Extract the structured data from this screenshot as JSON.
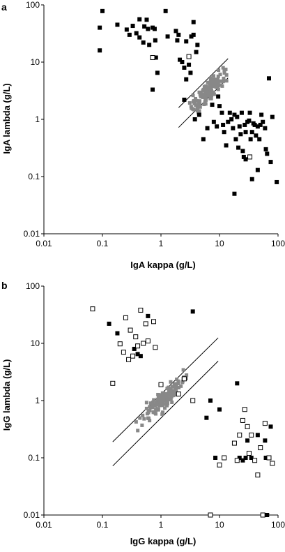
{
  "chart_data": [
    {
      "panel": "a",
      "type": "scatter",
      "xscale": "log",
      "yscale": "log",
      "xlim": [
        0.01,
        100
      ],
      "ylim": [
        0.01,
        100
      ],
      "xticks": [
        "0.01",
        "0.1",
        "1",
        "10",
        "100"
      ],
      "yticks": [
        "0.01",
        "0.1",
        "1",
        "10",
        "100"
      ],
      "xlabel": "IgA kappa (g/L)",
      "ylabel": "IgA lambda (g/L)",
      "grid": false,
      "lines": [
        {
          "x": [
            2.0,
            14.0
          ],
          "y": [
            1.6,
            11.5
          ]
        },
        {
          "x": [
            2.0,
            14.0
          ],
          "y": [
            0.72,
            5.3
          ]
        }
      ],
      "series": [
        {
          "marker": "filled-square",
          "color": "#000000",
          "points": [
            [
              0.09,
              16
            ],
            [
              0.09,
              40
            ],
            [
              0.1,
              78
            ],
            [
              0.18,
              45
            ],
            [
              0.26,
              37
            ],
            [
              0.29,
              30
            ],
            [
              0.33,
              43
            ],
            [
              0.38,
              32
            ],
            [
              0.43,
              56
            ],
            [
              0.43,
              27
            ],
            [
              0.5,
              22
            ],
            [
              0.52,
              42
            ],
            [
              0.57,
              55
            ],
            [
              0.6,
              38
            ],
            [
              0.63,
              20
            ],
            [
              0.72,
              40
            ],
            [
              0.78,
              38
            ],
            [
              0.8,
              24
            ],
            [
              0.82,
              12
            ],
            [
              0.87,
              6.5
            ],
            [
              0.72,
              3.3
            ],
            [
              1.2,
              78
            ],
            [
              1.3,
              28
            ],
            [
              1.8,
              35
            ],
            [
              2.0,
              30
            ],
            [
              1.9,
              24
            ],
            [
              2.1,
              11
            ],
            [
              2.3,
              10
            ],
            [
              2.5,
              8
            ],
            [
              2.7,
              23
            ],
            [
              3.0,
              9
            ],
            [
              3.3,
              28
            ],
            [
              3.6,
              50
            ],
            [
              3.6,
              30
            ],
            [
              4.0,
              15
            ],
            [
              4.2,
              20
            ],
            [
              3.2,
              6.5
            ],
            [
              2.7,
              5
            ],
            [
              2.5,
              2.2
            ],
            [
              4.5,
              1.2
            ],
            [
              3.8,
              1.0
            ],
            [
              5.3,
              0.45
            ],
            [
              6.2,
              0.7
            ],
            [
              7.5,
              1.8
            ],
            [
              8.0,
              0.9
            ],
            [
              9.0,
              0.75
            ],
            [
              9.5,
              2.5
            ],
            [
              10.0,
              1.7
            ],
            [
              11.0,
              1.3
            ],
            [
              12.0,
              0.6
            ],
            [
              13.0,
              0.35
            ],
            [
              11.5,
              0.8
            ],
            [
              14.0,
              0.9
            ],
            [
              15.0,
              1.3
            ],
            [
              16.0,
              1.0
            ],
            [
              17.0,
              0.7
            ],
            [
              18.0,
              1.2
            ],
            [
              19.0,
              0.45
            ],
            [
              20.0,
              1.1
            ],
            [
              21.0,
              0.32
            ],
            [
              22.0,
              0.75
            ],
            [
              23.0,
              0.55
            ],
            [
              24.0,
              1.3
            ],
            [
              25.0,
              0.28
            ],
            [
              26.0,
              0.22
            ],
            [
              27.0,
              0.8
            ],
            [
              28.0,
              0.6
            ],
            [
              30.0,
              0.9
            ],
            [
              32.0,
              0.95
            ],
            [
              33.0,
              1.3
            ],
            [
              34.0,
              0.45
            ],
            [
              36.0,
              0.6
            ],
            [
              38.0,
              0.85
            ],
            [
              40.0,
              0.8
            ],
            [
              42.0,
              0.52
            ],
            [
              45.0,
              0.75
            ],
            [
              48.0,
              0.45
            ],
            [
              50.0,
              0.8
            ],
            [
              52.0,
              1.2
            ],
            [
              55.0,
              0.9
            ],
            [
              60.0,
              0.7
            ],
            [
              62.0,
              0.3
            ],
            [
              65.0,
              0.25
            ],
            [
              70.0,
              5.2
            ],
            [
              28.0,
              0.2
            ],
            [
              36.0,
              0.09
            ],
            [
              45.0,
              0.13
            ],
            [
              18.0,
              0.05
            ],
            [
              95.0,
              0.08
            ],
            [
              75.0,
              0.18
            ],
            [
              80.0,
              1.1
            ]
          ]
        },
        {
          "marker": "open-square",
          "color": "#000000",
          "points": [
            [
              0.72,
              12
            ],
            [
              3.0,
              12.5
            ],
            [
              33.0,
              0.22
            ]
          ]
        },
        {
          "marker": "gray-square",
          "color": "#888888",
          "cluster": true
        }
      ]
    },
    {
      "panel": "b",
      "type": "scatter",
      "xscale": "log",
      "yscale": "log",
      "xlim": [
        0.01,
        100
      ],
      "ylim": [
        0.01,
        100
      ],
      "xticks": [
        "0.01",
        "0.1",
        "1",
        "10",
        "100"
      ],
      "yticks": [
        "0.01",
        "0.1",
        "1",
        "10",
        "100"
      ],
      "xlabel": "IgG kappa (g/L)",
      "ylabel": "IgG lambda (g/L)",
      "grid": false,
      "lines": [
        {
          "x": [
            0.15,
            9.5
          ],
          "y": [
            0.19,
            12.5
          ]
        },
        {
          "x": [
            0.15,
            9.5
          ],
          "y": [
            0.072,
            4.9
          ]
        }
      ],
      "series": [
        {
          "marker": "filled-square",
          "color": "#000000",
          "points": [
            [
              0.13,
              22
            ],
            [
              0.18,
              15
            ],
            [
              0.35,
              8
            ],
            [
              0.4,
              6.5
            ],
            [
              0.45,
              6
            ],
            [
              0.6,
              30
            ],
            [
              3.5,
              36
            ],
            [
              6.0,
              0.5
            ],
            [
              7.0,
              1.0
            ],
            [
              8.5,
              0.1
            ],
            [
              10.0,
              0.7
            ],
            [
              20.0,
              2.0
            ],
            [
              22.0,
              0.1
            ],
            [
              25.0,
              0.09
            ],
            [
              28.0,
              0.1
            ],
            [
              30.0,
              0.2
            ],
            [
              35.0,
              0.1
            ],
            [
              45.0,
              0.25
            ],
            [
              60.0,
              0.2
            ],
            [
              62.0,
              0.1
            ],
            [
              75.0,
              0.35
            ],
            [
              65.0,
              0.01
            ]
          ]
        },
        {
          "marker": "open-square",
          "color": "#000000",
          "points": [
            [
              0.068,
              40
            ],
            [
              0.15,
              2.0
            ],
            [
              0.2,
              9.8
            ],
            [
              0.23,
              7
            ],
            [
              0.25,
              28
            ],
            [
              0.28,
              5.2
            ],
            [
              0.3,
              17
            ],
            [
              0.33,
              6
            ],
            [
              0.37,
              13
            ],
            [
              0.4,
              9
            ],
            [
              0.45,
              38
            ],
            [
              0.5,
              10
            ],
            [
              0.55,
              22
            ],
            [
              0.6,
              11
            ],
            [
              0.75,
              24
            ],
            [
              0.8,
              8.5
            ],
            [
              1.0,
              1.9
            ],
            [
              2.0,
              1.3
            ],
            [
              2.5,
              2.4
            ],
            [
              3.5,
              1.0
            ],
            [
              7.0,
              0.01
            ],
            [
              10.0,
              0.075
            ],
            [
              12.0,
              0.1
            ],
            [
              18.0,
              0.18
            ],
            [
              20.0,
              0.09
            ],
            [
              22.0,
              0.25
            ],
            [
              25.0,
              0.45
            ],
            [
              27.0,
              0.7
            ],
            [
              30.0,
              0.35
            ],
            [
              32.0,
              0.12
            ],
            [
              35.0,
              0.25
            ],
            [
              40.0,
              0.09
            ],
            [
              45.0,
              0.05
            ],
            [
              50.0,
              0.15
            ],
            [
              55.0,
              0.01
            ],
            [
              70.0,
              0.1
            ],
            [
              80.0,
              0.08
            ],
            [
              60.0,
              0.4
            ]
          ]
        },
        {
          "marker": "gray-square",
          "color": "#888888",
          "cluster": true
        }
      ]
    }
  ]
}
